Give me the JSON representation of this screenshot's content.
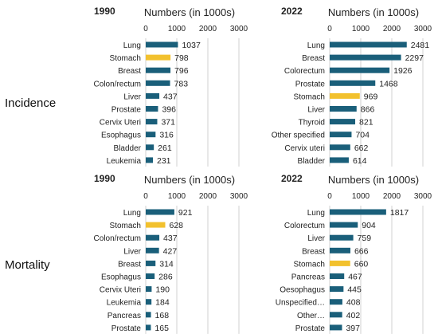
{
  "row_labels": [
    "Incidence",
    "Mortality"
  ],
  "colors": {
    "bar": "#1a5f7a",
    "highlight": "#f2c12e",
    "axis": "#d0d0d0",
    "text": "#222222"
  },
  "chart_data": [
    {
      "type": "bar",
      "orientation": "horizontal",
      "year": "1990",
      "xlabel": "Numbers (in 1000s)",
      "xlim": [
        0,
        3000
      ],
      "xticks": [
        0,
        1000,
        2000,
        3000
      ],
      "categories": [
        "Lung",
        "Stomach",
        "Breast",
        "Colon/rectum",
        "Liver",
        "Prostate",
        "Cervix Uteri",
        "Esophagus",
        "Bladder",
        "Leukemia"
      ],
      "values": [
        1037,
        798,
        796,
        783,
        437,
        396,
        371,
        316,
        261,
        231
      ],
      "highlight": "Stomach"
    },
    {
      "type": "bar",
      "orientation": "horizontal",
      "year": "2022",
      "xlabel": "Numbers (in 1000s)",
      "xlim": [
        0,
        3000
      ],
      "xticks": [
        0,
        1000,
        2000,
        3000
      ],
      "categories": [
        "Lung",
        "Breast",
        "Colorectum",
        "Prostate",
        "Stomach",
        "Liver",
        "Thyroid",
        "Other specified",
        "Cervix uteri",
        "Bladder"
      ],
      "values": [
        2481,
        2297,
        1926,
        1468,
        969,
        866,
        821,
        704,
        662,
        614
      ],
      "highlight": "Stomach"
    },
    {
      "type": "bar",
      "orientation": "horizontal",
      "year": "1990",
      "xlabel": "Numbers (in 1000s)",
      "xlim": [
        0,
        3000
      ],
      "xticks": [
        0,
        1000,
        2000,
        3000
      ],
      "categories": [
        "Lung",
        "Stomach",
        "Colon/rectum",
        "Liver",
        "Breast",
        "Esophagus",
        "Cervix Uteri",
        "Leukemia",
        "Pancreas",
        "Prostate"
      ],
      "values": [
        921,
        628,
        437,
        427,
        314,
        286,
        190,
        184,
        168,
        165
      ],
      "highlight": "Stomach"
    },
    {
      "type": "bar",
      "orientation": "horizontal",
      "year": "2022",
      "xlabel": "Numbers (in 1000s)",
      "xlim": [
        0,
        3000
      ],
      "xticks": [
        0,
        1000,
        2000,
        3000
      ],
      "categories": [
        "Lung",
        "Colorectum",
        "Liver",
        "Breast",
        "Stomach",
        "Pancreas",
        "Oesophagus",
        "Unspecified…",
        "Other…",
        "Prostate"
      ],
      "values": [
        1817,
        904,
        759,
        666,
        660,
        467,
        445,
        408,
        402,
        397
      ],
      "highlight": "Stomach"
    }
  ]
}
